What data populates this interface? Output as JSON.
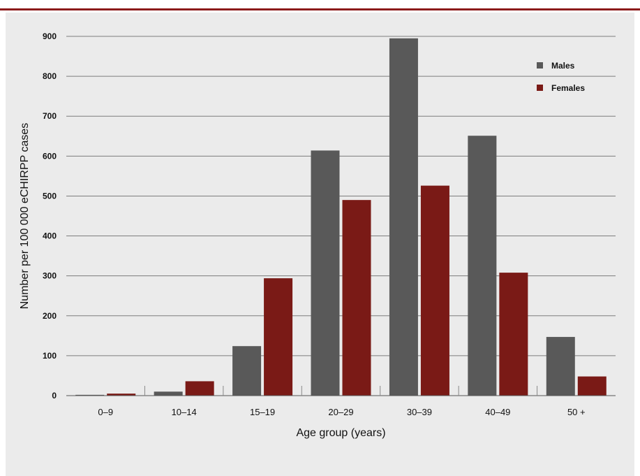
{
  "chart_data": {
    "type": "bar",
    "title": "",
    "xlabel": "Age group (years)",
    "ylabel": "Number per 100 000 eCHIRPP cases",
    "ylim": [
      0,
      900
    ],
    "yticks": [
      0,
      100,
      200,
      300,
      400,
      500,
      600,
      700,
      800,
      900
    ],
    "categories": [
      "0–9",
      "10–14",
      "15–19",
      "20–29",
      "30–39",
      "40–49",
      "50 +"
    ],
    "series": [
      {
        "name": "Males",
        "color": "#595959",
        "values": [
          2,
          10,
          124,
          614,
          895,
          651,
          147
        ]
      },
      {
        "name": "Females",
        "color": "#7a1a16",
        "values": [
          5,
          36,
          294,
          490,
          526,
          308,
          48
        ]
      }
    ],
    "grid": true,
    "legend_position": "top-right"
  }
}
